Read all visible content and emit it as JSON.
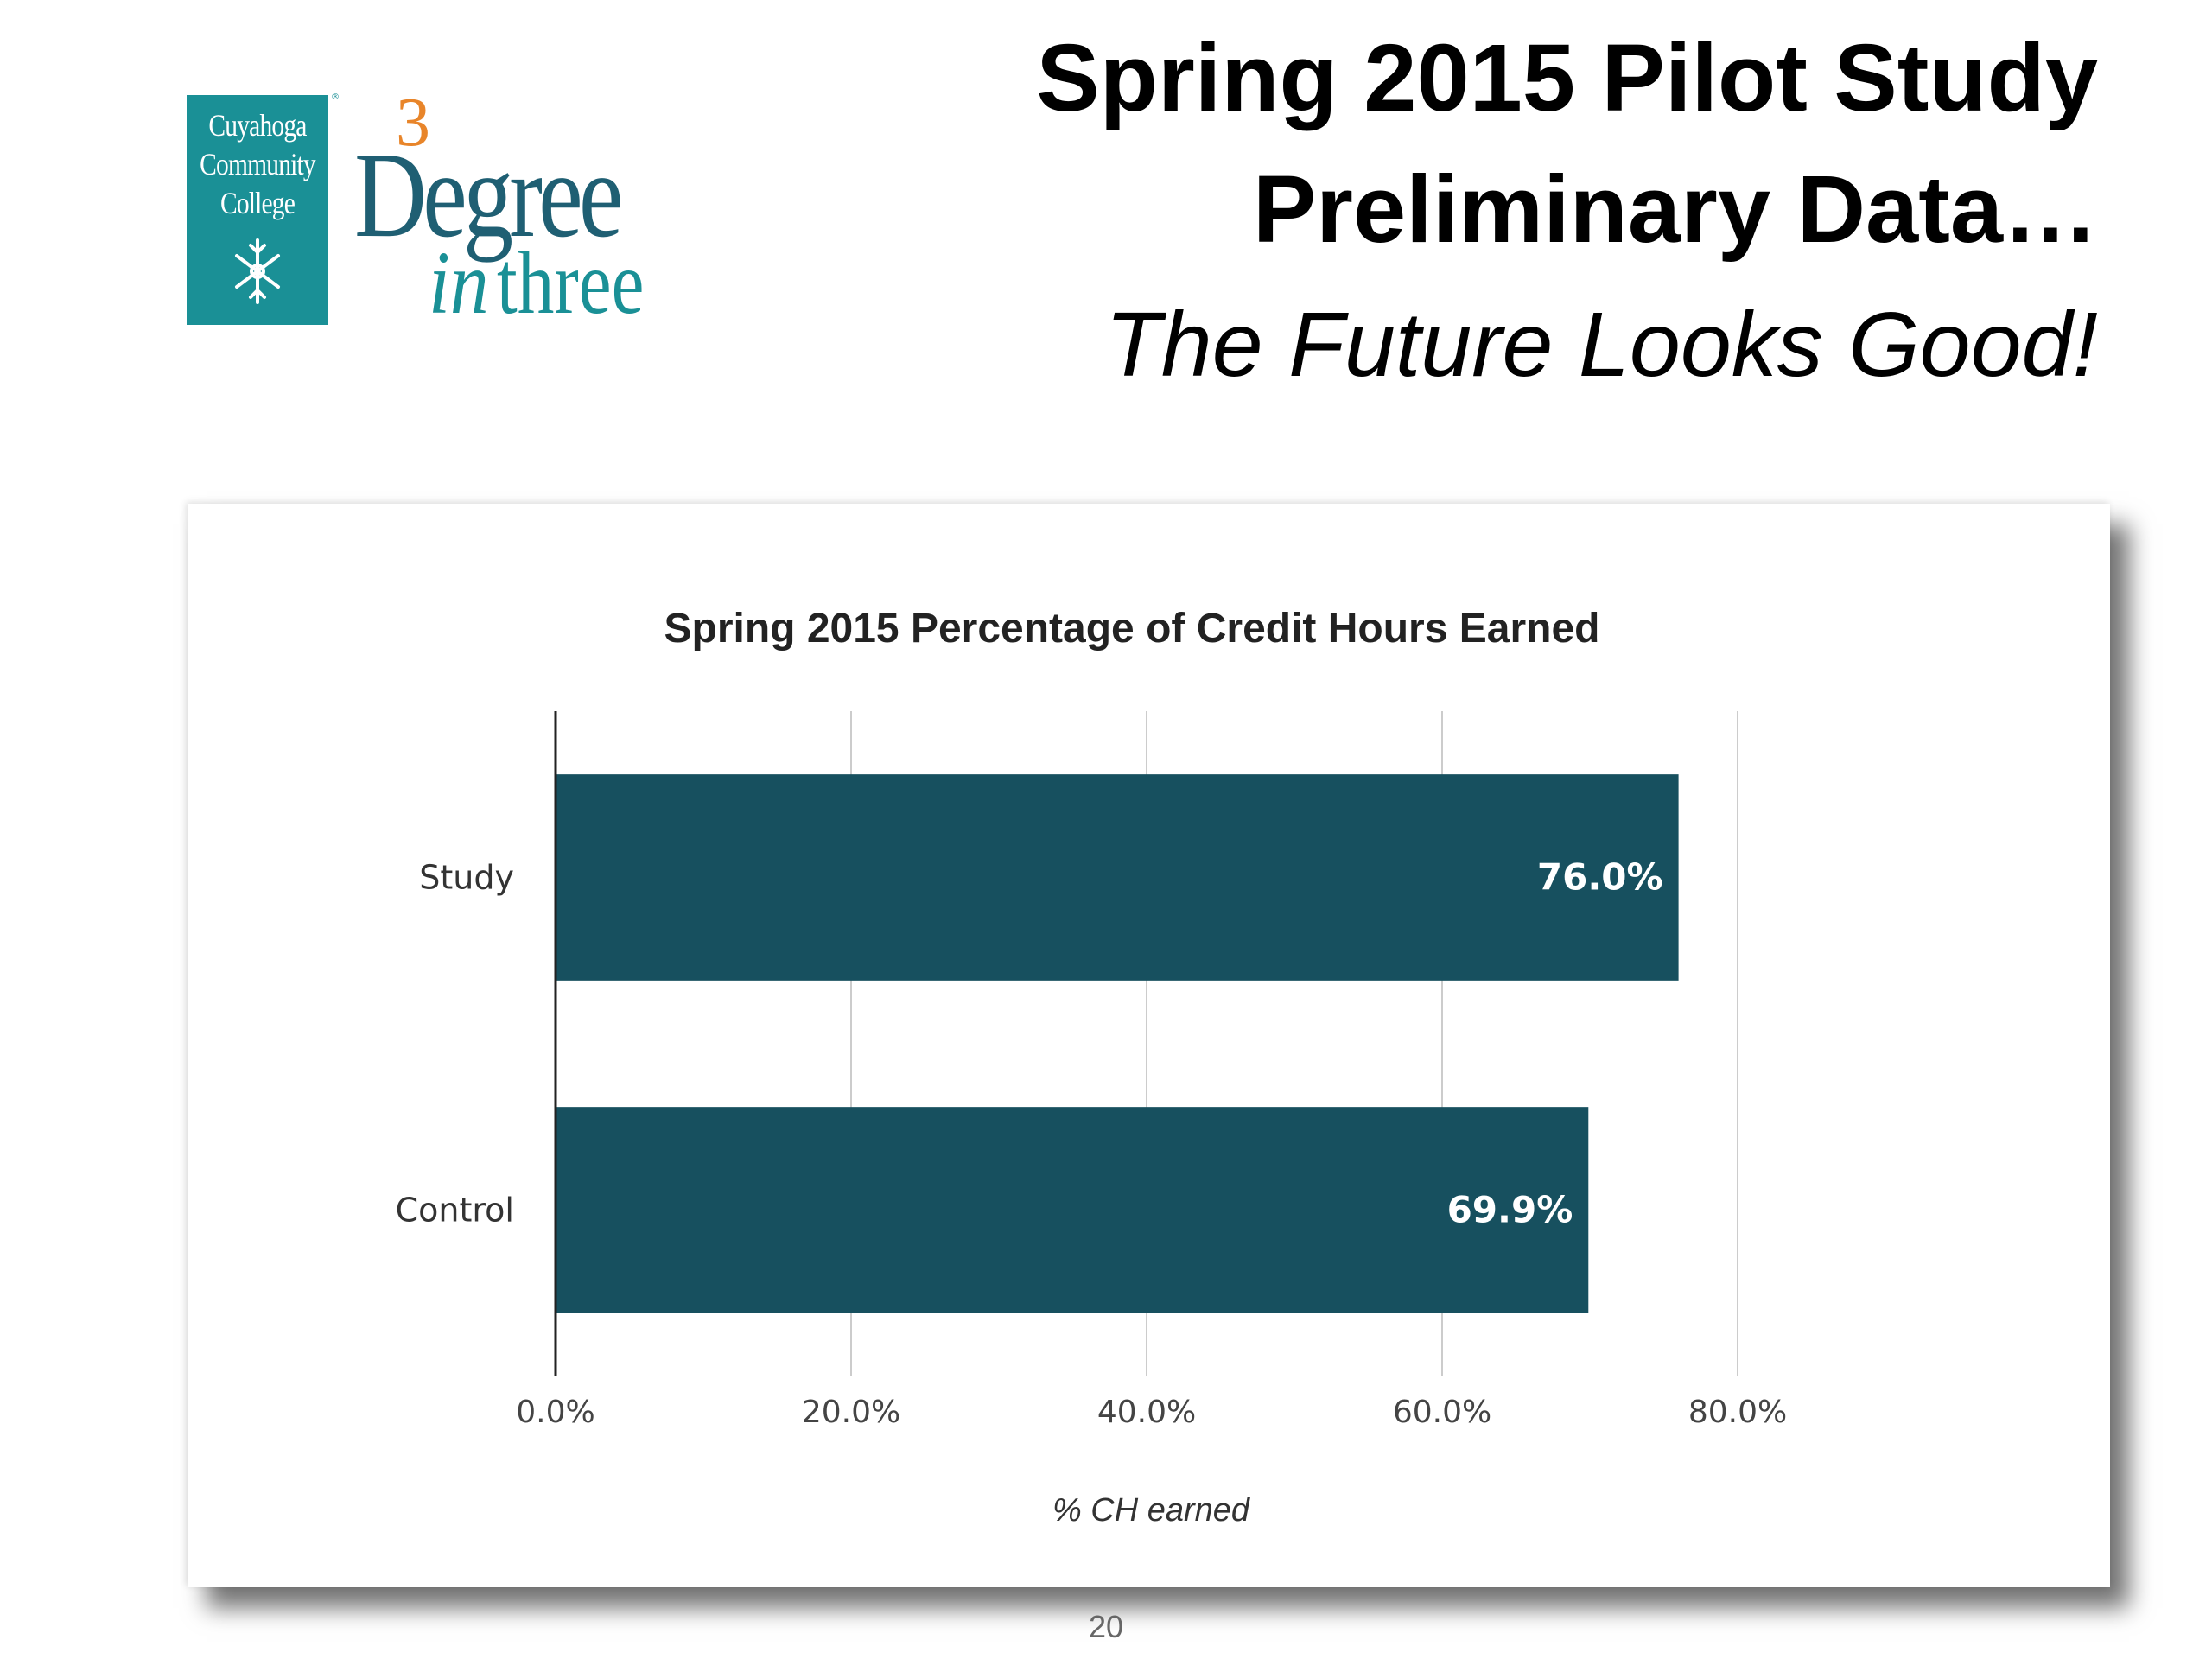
{
  "logo": {
    "college_lines": [
      "Cuyahoga",
      "Community",
      "College"
    ],
    "registered_mark": "®",
    "program_number": "3",
    "program_word": "Degree",
    "program_in": "in",
    "program_three": "three",
    "colors": {
      "teal": "#1a9096",
      "navy": "#1f5f73",
      "orange": "#e8852a"
    },
    "icon": "snowflake-icon"
  },
  "slide": {
    "title_line_1": "Spring 2015 Pilot Study",
    "title_line_2": "Preliminary Data…",
    "title_line_3": "The Future Looks Good!",
    "page_number": "20"
  },
  "chart_data": {
    "type": "bar",
    "orientation": "horizontal",
    "title": "Spring 2015 Percentage of Credit Hours Earned",
    "xlabel": "% CH earned",
    "ylabel": "",
    "categories": [
      "Study",
      "Control"
    ],
    "values": [
      76.0,
      69.9
    ],
    "data_labels": [
      "76.0%",
      "69.9%"
    ],
    "xlim": [
      0,
      80
    ],
    "xticks": [
      0,
      20,
      40,
      60,
      80
    ],
    "xtick_labels": [
      "0.0%",
      "20.0%",
      "40.0%",
      "60.0%",
      "80.0%"
    ],
    "grid": true,
    "legend": "none",
    "bar_color": "#17505f"
  }
}
